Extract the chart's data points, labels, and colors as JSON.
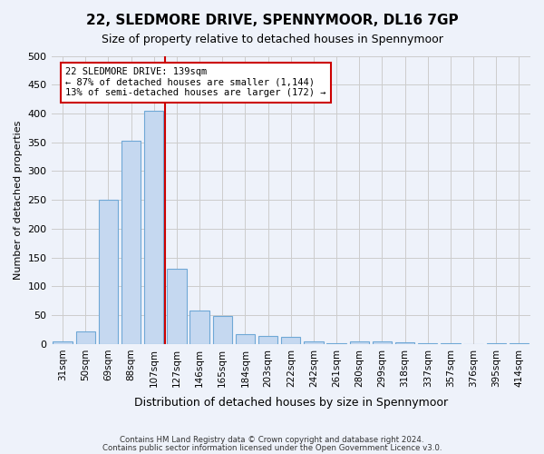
{
  "title": "22, SLEDMORE DRIVE, SPENNYMOOR, DL16 7GP",
  "subtitle": "Size of property relative to detached houses in Spennymoor",
  "xlabel": "Distribution of detached houses by size in Spennymoor",
  "ylabel": "Number of detached properties",
  "categories": [
    "31sqm",
    "50sqm",
    "69sqm",
    "88sqm",
    "107sqm",
    "127sqm",
    "146sqm",
    "165sqm",
    "184sqm",
    "203sqm",
    "222sqm",
    "242sqm",
    "261sqm",
    "280sqm",
    "299sqm",
    "318sqm",
    "337sqm",
    "357sqm",
    "376sqm",
    "395sqm",
    "414sqm"
  ],
  "values": [
    5,
    22,
    250,
    352,
    405,
    130,
    58,
    48,
    17,
    14,
    12,
    5,
    2,
    5,
    5,
    3,
    1,
    2,
    0,
    2,
    1
  ],
  "bar_color": "#c5d8f0",
  "bar_edge_color": "#6fa8d6",
  "property_line_x": 4.5,
  "annotation_line1": "22 SLEDMORE DRIVE: 139sqm",
  "annotation_line2": "← 87% of detached houses are smaller (1,144)",
  "annotation_line3": "13% of semi-detached houses are larger (172) →",
  "annotation_box_color": "#ffffff",
  "annotation_box_edge": "#cc0000",
  "vline_color": "#cc0000",
  "grid_color": "#cccccc",
  "ylim": [
    0,
    500
  ],
  "yticks": [
    0,
    50,
    100,
    150,
    200,
    250,
    300,
    350,
    400,
    450,
    500
  ],
  "footer1": "Contains HM Land Registry data © Crown copyright and database right 2024.",
  "footer2": "Contains public sector information licensed under the Open Government Licence v3.0.",
  "bg_color": "#eef2fa"
}
